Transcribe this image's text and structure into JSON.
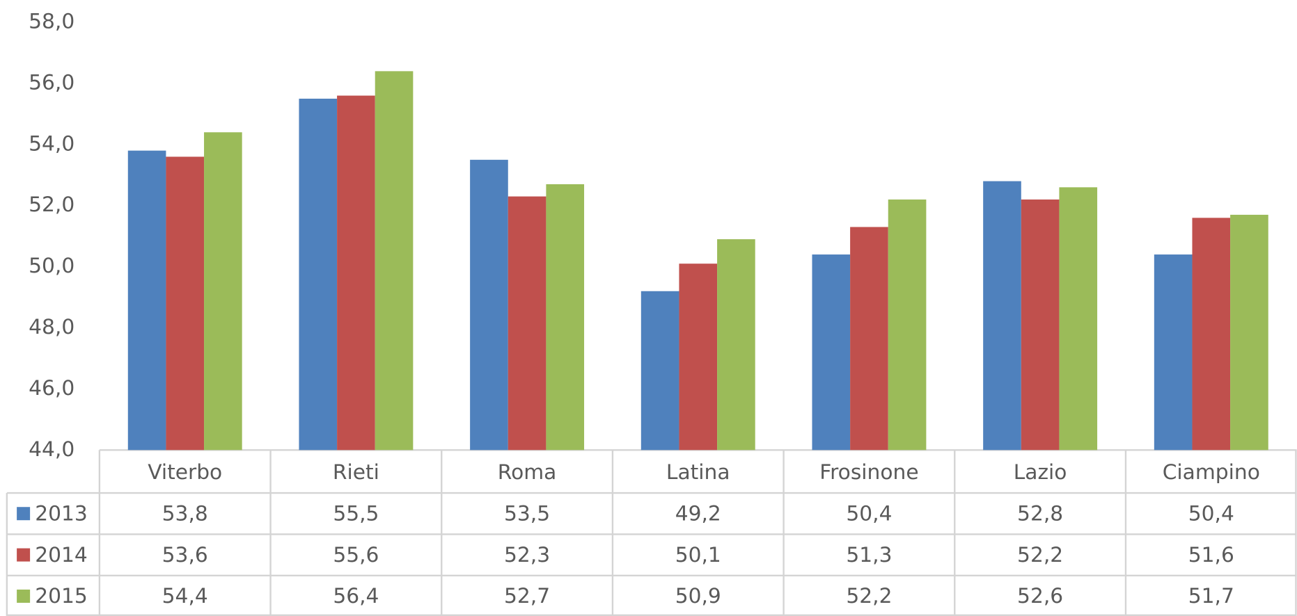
{
  "chart_data": {
    "type": "bar",
    "categories": [
      "Viterbo",
      "Rieti",
      "Roma",
      "Latina",
      "Frosinone",
      "Lazio",
      "Ciampino"
    ],
    "series": [
      {
        "name": "2013",
        "color": "#4f81bd",
        "values": [
          53.8,
          55.5,
          53.5,
          49.2,
          50.4,
          52.8,
          50.4
        ],
        "value_labels": [
          "53,8",
          "55,5",
          "53,5",
          "49,2",
          "50,4",
          "52,8",
          "50,4"
        ]
      },
      {
        "name": "2014",
        "color": "#c0504d",
        "values": [
          53.6,
          55.6,
          52.3,
          50.1,
          51.3,
          52.2,
          51.6
        ],
        "value_labels": [
          "53,6",
          "55,6",
          "52,3",
          "50,1",
          "51,3",
          "52,2",
          "51,6"
        ]
      },
      {
        "name": "2015",
        "color": "#9bbb59",
        "values": [
          54.4,
          56.4,
          52.7,
          50.9,
          52.2,
          52.6,
          51.7
        ],
        "value_labels": [
          "54,4",
          "56,4",
          "52,7",
          "50,9",
          "52,2",
          "52,6",
          "51,7"
        ]
      }
    ],
    "ylim": [
      44,
      58
    ],
    "yticks": [
      {
        "value": 44,
        "label": "44,0"
      },
      {
        "value": 46,
        "label": "46,0"
      },
      {
        "value": 48,
        "label": "48,0"
      },
      {
        "value": 50,
        "label": "50,0"
      },
      {
        "value": 52,
        "label": "52,0"
      },
      {
        "value": 54,
        "label": "54,0"
      },
      {
        "value": 56,
        "label": "56,0"
      },
      {
        "value": 58,
        "label": "58,0"
      }
    ],
    "grid": false,
    "legend": "table"
  }
}
